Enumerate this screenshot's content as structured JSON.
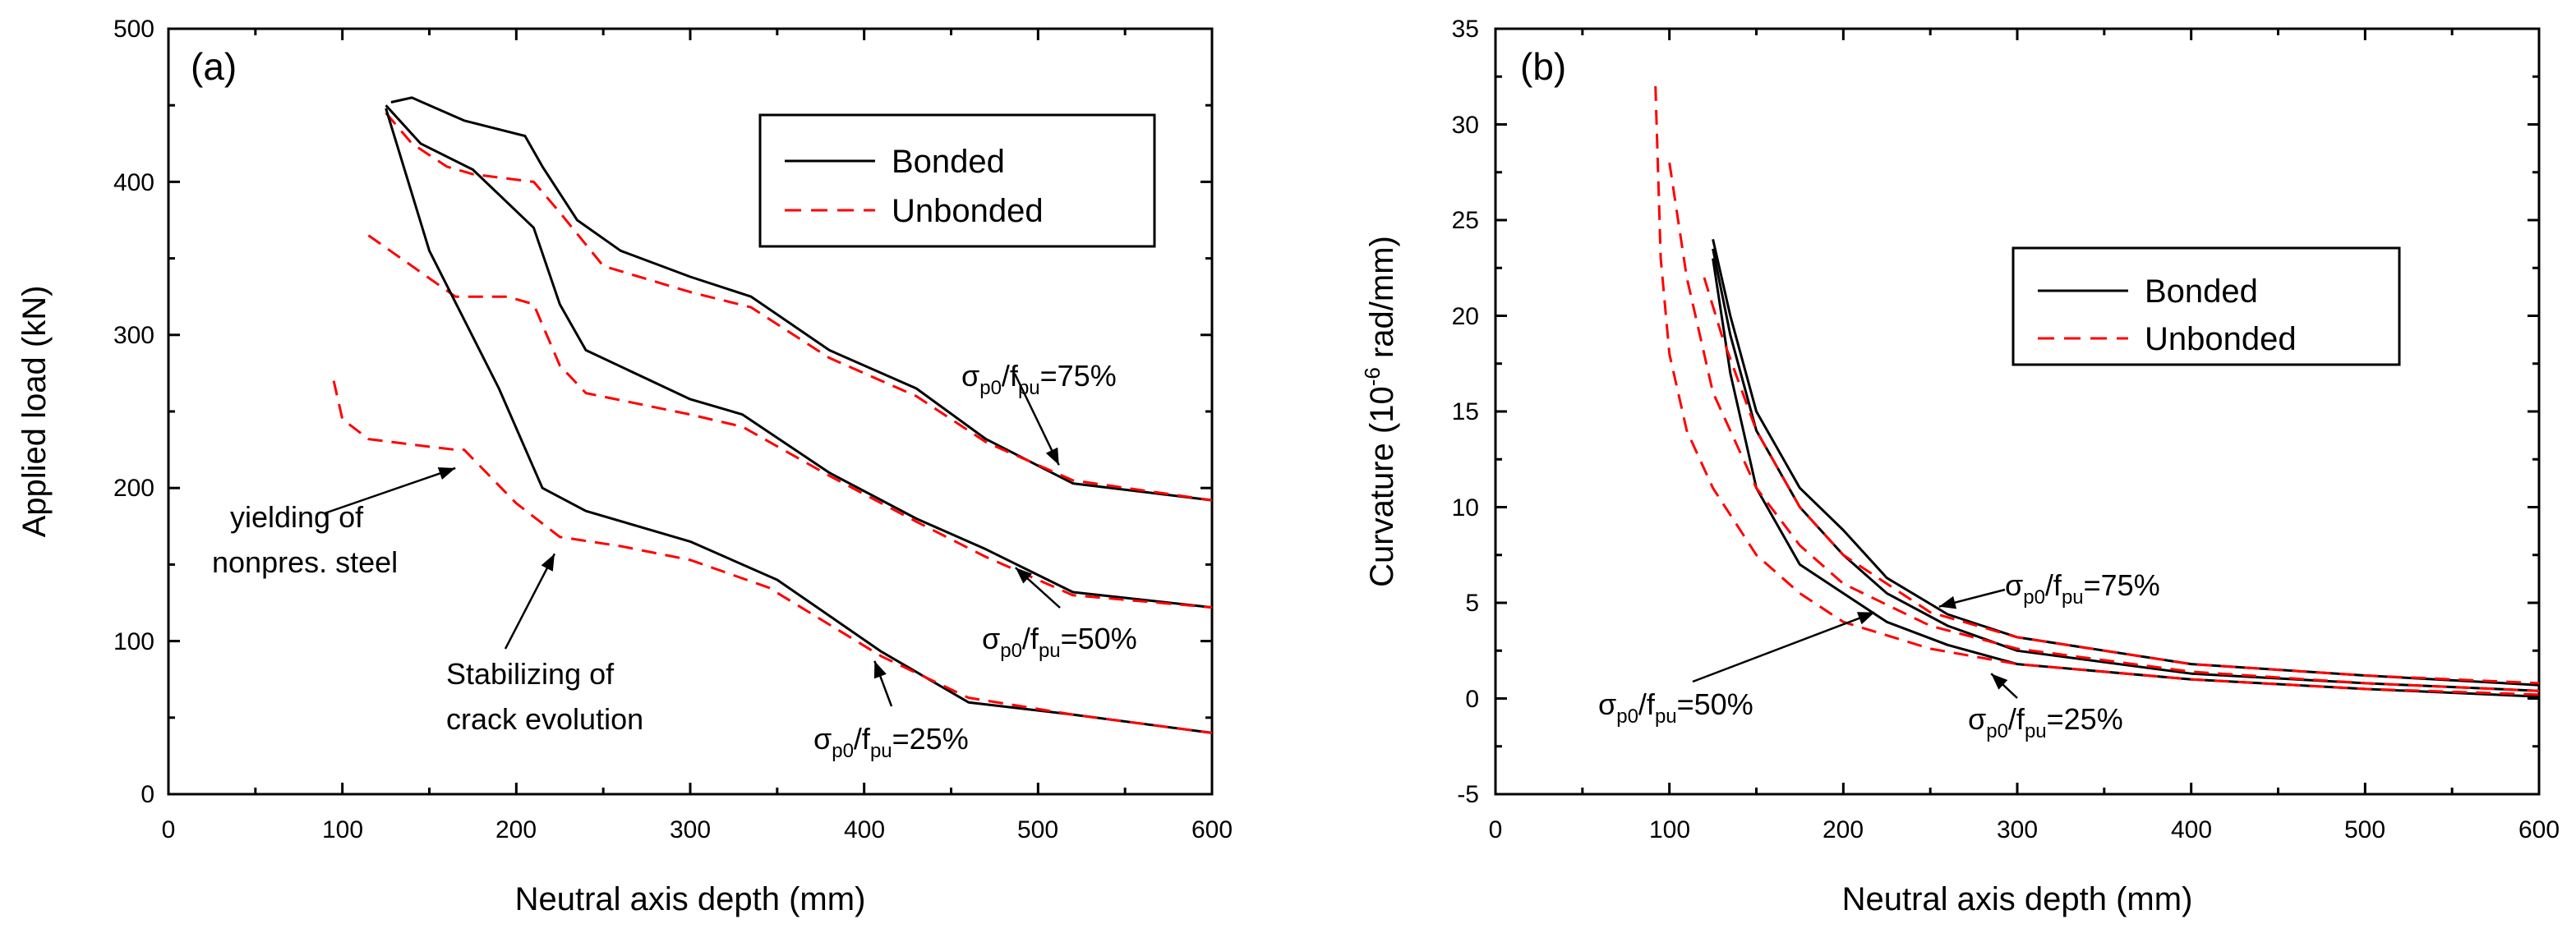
{
  "chart_data": [
    {
      "type": "line",
      "panel_label": "(a)",
      "xlabel": "Neutral axis depth (mm)",
      "ylabel": "Applied load (kN)",
      "xlim": [
        0,
        600
      ],
      "ylim": [
        0,
        500
      ],
      "xticks": [
        "0",
        "100",
        "200",
        "300",
        "400",
        "500",
        "600"
      ],
      "yticks": [
        "0",
        "100",
        "200",
        "300",
        "400",
        "500"
      ],
      "grid": false,
      "legend": {
        "placement": "top-right",
        "entries": [
          {
            "label": "Bonded",
            "color": "#000000",
            "dash": "solid"
          },
          {
            "label": "Unbonded",
            "color": "#ff0000",
            "dash": "dashed"
          }
        ]
      },
      "series": [
        {
          "name": "Bonded",
          "ratio": "75%",
          "x": [
            128,
            140,
            170,
            205,
            215,
            235,
            260,
            300,
            335,
            380,
            430,
            470,
            520,
            600
          ],
          "y": [
            452,
            455,
            440,
            430,
            410,
            375,
            355,
            338,
            325,
            290,
            265,
            232,
            203,
            192
          ]
        },
        {
          "name": "Unbonded",
          "ratio": "75%",
          "x": [
            125,
            140,
            160,
            175,
            210,
            225,
            250,
            300,
            335,
            380,
            430,
            470,
            520,
            600
          ],
          "y": [
            445,
            425,
            410,
            405,
            400,
            380,
            345,
            328,
            318,
            285,
            260,
            230,
            205,
            192
          ]
        },
        {
          "name": "Bonded",
          "ratio": "50%",
          "x": [
            125,
            145,
            175,
            210,
            225,
            240,
            300,
            330,
            380,
            430,
            470,
            520,
            600
          ],
          "y": [
            450,
            425,
            408,
            370,
            320,
            290,
            258,
            248,
            210,
            180,
            160,
            132,
            122
          ]
        },
        {
          "name": "Unbonded",
          "ratio": "50%",
          "x": [
            115,
            140,
            165,
            195,
            210,
            225,
            240,
            300,
            330,
            380,
            430,
            470,
            520,
            600
          ],
          "y": [
            365,
            345,
            325,
            325,
            320,
            280,
            262,
            248,
            240,
            208,
            178,
            155,
            130,
            122
          ]
        },
        {
          "name": "Bonded",
          "ratio": "25%",
          "x": [
            125,
            150,
            190,
            215,
            240,
            300,
            350,
            410,
            460,
            520,
            600
          ],
          "y": [
            448,
            355,
            265,
            200,
            185,
            165,
            140,
            93,
            60,
            52,
            40
          ]
        },
        {
          "name": "Unbonded",
          "ratio": "25%",
          "x": [
            95,
            100,
            115,
            150,
            165,
            170,
            200,
            225,
            260,
            300,
            345,
            410,
            460,
            520,
            600
          ],
          "y": [
            270,
            245,
            232,
            227,
            225,
            225,
            190,
            168,
            162,
            153,
            135,
            90,
            63,
            52,
            40
          ]
        }
      ],
      "annotations": [
        {
          "lines": [
            "σp0/fpu=75%"
          ],
          "arrow_to": [
            512,
            215
          ]
        },
        {
          "lines": [
            "σp0/fpu=50%"
          ],
          "arrow_to": [
            487,
            148
          ]
        },
        {
          "lines": [
            "σp0/fpu=25%"
          ],
          "arrow_to": [
            406,
            87
          ]
        },
        {
          "lines": [
            "yielding of",
            "nonpres. steel"
          ],
          "arrow_to": [
            165,
            213
          ]
        },
        {
          "lines": [
            "Stabilizing of",
            "crack evolution"
          ],
          "arrow_to": [
            222,
            157
          ]
        }
      ]
    },
    {
      "type": "line",
      "panel_label": "(b)",
      "xlabel": "Neutral axis depth (mm)",
      "ylabel": "Curvature (10-6 rad/mm)",
      "xlim": [
        0,
        600
      ],
      "ylim": [
        -5,
        35
      ],
      "xticks": [
        "0",
        "100",
        "200",
        "300",
        "400",
        "500",
        "600"
      ],
      "yticks": [
        "-5",
        "0",
        "5",
        "10",
        "15",
        "20",
        "25",
        "30",
        "35"
      ],
      "grid": false,
      "legend": {
        "placement": "top-right",
        "entries": [
          {
            "label": "Bonded",
            "color": "#000000",
            "dash": "solid"
          },
          {
            "label": "Unbonded",
            "color": "#ff0000",
            "dash": "dashed"
          }
        ]
      },
      "series": [
        {
          "name": "Bonded",
          "ratio": "75%",
          "x": [
            125,
            135,
            150,
            175,
            200,
            225,
            260,
            300,
            400,
            500,
            600
          ],
          "y": [
            24,
            20,
            15,
            11,
            8.8,
            6.3,
            4.4,
            3.2,
            1.8,
            1.2,
            0.7
          ]
        },
        {
          "name": "Bonded",
          "ratio": "50%",
          "x": [
            125,
            135,
            150,
            175,
            200,
            225,
            260,
            300,
            400,
            500,
            600
          ],
          "y": [
            23.5,
            19,
            14,
            10,
            7.5,
            5.5,
            3.8,
            2.5,
            1.3,
            0.8,
            0.4
          ]
        },
        {
          "name": "Bonded",
          "ratio": "25%",
          "x": [
            125,
            135,
            150,
            175,
            200,
            225,
            260,
            300,
            400,
            500,
            600
          ],
          "y": [
            23,
            17,
            11,
            7,
            5.5,
            4,
            2.8,
            1.8,
            1,
            0.5,
            0.1
          ]
        },
        {
          "name": "Unbonded",
          "ratio": "75%",
          "x": [
            120,
            130,
            150,
            175,
            200,
            250,
            300,
            400,
            500,
            600
          ],
          "y": [
            22,
            19,
            14,
            10,
            7.5,
            4.5,
            3.2,
            1.8,
            1.2,
            0.8
          ]
        },
        {
          "name": "Unbonded",
          "ratio": "50%",
          "x": [
            100,
            110,
            125,
            150,
            175,
            200,
            250,
            300,
            400,
            500,
            600
          ],
          "y": [
            28,
            22,
            16,
            11,
            8,
            6,
            3.8,
            2.6,
            1.4,
            0.8,
            0.4
          ]
        },
        {
          "name": "Unbonded",
          "ratio": "25%",
          "x": [
            92,
            95,
            100,
            110,
            125,
            150,
            175,
            200,
            250,
            300,
            400,
            500,
            600
          ],
          "y": [
            32,
            23,
            18,
            14,
            11,
            7.5,
            5.5,
            4,
            2.6,
            1.8,
            1,
            0.5,
            0.2
          ]
        }
      ],
      "annotations": [
        {
          "lines": [
            "σp0/fpu=75%"
          ],
          "arrow_to": [
            255,
            4.8
          ]
        },
        {
          "lines": [
            "σp0/fpu=50%"
          ],
          "arrow_to": [
            218,
            4.5
          ]
        },
        {
          "lines": [
            "σp0/fpu=25%"
          ],
          "arrow_to": [
            285,
            1.3
          ]
        }
      ]
    }
  ]
}
